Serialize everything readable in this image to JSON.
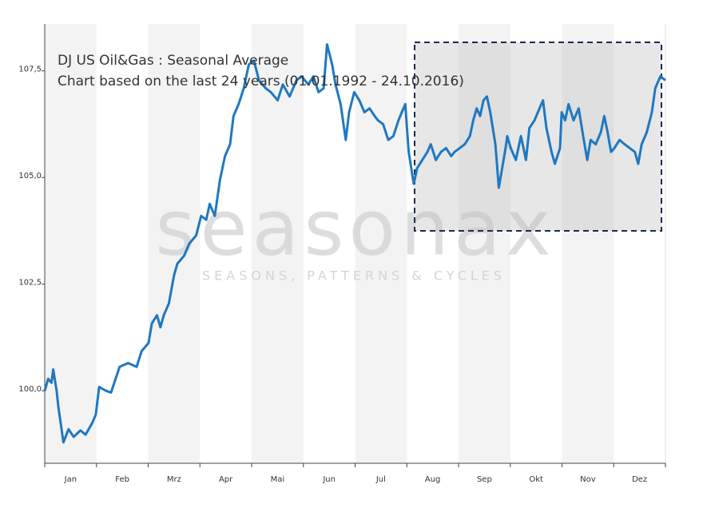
{
  "chart_data": {
    "type": "line",
    "title": "DJ US Oil&Gas : Seasonal Average",
    "subtitle": "Chart based on the last 24 years (01.01.1992 - 24.10.2016)",
    "watermark": "seasonax",
    "watermark_tagline": "SEASONS, PATTERNS & CYCLES",
    "months": [
      "Jan",
      "Feb",
      "Mrz",
      "Apr",
      "Mai",
      "Jun",
      "Jul",
      "Aug",
      "Sep",
      "Okt",
      "Nov",
      "Dez"
    ],
    "xlim": [
      0,
      365
    ],
    "ylim": [
      98.3,
      108.6
    ],
    "yticks": [
      {
        "value": 100.0,
        "label": "100,0"
      },
      {
        "value": 102.5,
        "label": "102,5"
      },
      {
        "value": 105.0,
        "label": "105,0"
      },
      {
        "value": 107.5,
        "label": "107,5"
      }
    ],
    "series": [
      {
        "color": "#1f78c1",
        "x": [
          0,
          2,
          4,
          5,
          7,
          8,
          11,
          14,
          17,
          21,
          24,
          28,
          30,
          32,
          36,
          39,
          44,
          49,
          54,
          57,
          61,
          63,
          66,
          68,
          70,
          73,
          76,
          78,
          82,
          85,
          89,
          92,
          95,
          97,
          100,
          103,
          106,
          109,
          111,
          114,
          117,
          120,
          123,
          126,
          130,
          133,
          137,
          140,
          144,
          148,
          151,
          155,
          158,
          161,
          164,
          166,
          169,
          171,
          174,
          177,
          179,
          182,
          185,
          188,
          191,
          194,
          196,
          199,
          202,
          205,
          208,
          210,
          212,
          214,
          217,
          219,
          222,
          225,
          227,
          230,
          233,
          236,
          239,
          241,
          244,
          247,
          250,
          252,
          254,
          256,
          258,
          260,
          262,
          265,
          267,
          269,
          271,
          272,
          274,
          277,
          280,
          283,
          285,
          288,
          290,
          293,
          295,
          298,
          300,
          303,
          304,
          306,
          308,
          311,
          314,
          317,
          319,
          321,
          324,
          327,
          329,
          331,
          333,
          335,
          338,
          341,
          344,
          347,
          349,
          351,
          354,
          357,
          359,
          362,
          365
        ],
        "values": [
          100.0,
          100.28,
          100.19,
          100.5,
          100.0,
          99.63,
          98.79,
          99.1,
          98.92,
          99.07,
          98.97,
          99.25,
          99.44,
          100.09,
          100.0,
          99.96,
          100.56,
          100.65,
          100.56,
          100.93,
          101.12,
          101.58,
          101.77,
          101.49,
          101.77,
          102.05,
          102.7,
          102.98,
          103.17,
          103.45,
          103.64,
          104.1,
          104.01,
          104.38,
          104.1,
          104.94,
          105.5,
          105.78,
          106.44,
          106.72,
          107.09,
          107.65,
          107.74,
          107.28,
          107.09,
          107.0,
          106.81,
          107.18,
          106.9,
          107.28,
          107.37,
          107.18,
          107.37,
          107.0,
          107.09,
          108.12,
          107.65,
          107.18,
          106.72,
          105.88,
          106.53,
          107.0,
          106.81,
          106.53,
          106.62,
          106.44,
          106.34,
          106.25,
          105.88,
          105.97,
          106.34,
          106.53,
          106.72,
          105.6,
          104.85,
          105.22,
          105.41,
          105.6,
          105.78,
          105.41,
          105.6,
          105.69,
          105.5,
          105.6,
          105.69,
          105.78,
          105.97,
          106.34,
          106.62,
          106.44,
          106.81,
          106.9,
          106.53,
          105.78,
          104.76,
          105.22,
          105.69,
          105.97,
          105.69,
          105.41,
          105.97,
          105.41,
          106.16,
          106.34,
          106.53,
          106.81,
          106.16,
          105.6,
          105.32,
          105.69,
          106.53,
          106.34,
          106.72,
          106.34,
          106.62,
          105.88,
          105.41,
          105.88,
          105.78,
          106.06,
          106.44,
          106.06,
          105.6,
          105.69,
          105.88,
          105.78,
          105.69,
          105.6,
          105.32,
          105.78,
          106.06,
          106.53,
          107.09,
          107.37,
          107.28
        ]
      }
    ]
  }
}
